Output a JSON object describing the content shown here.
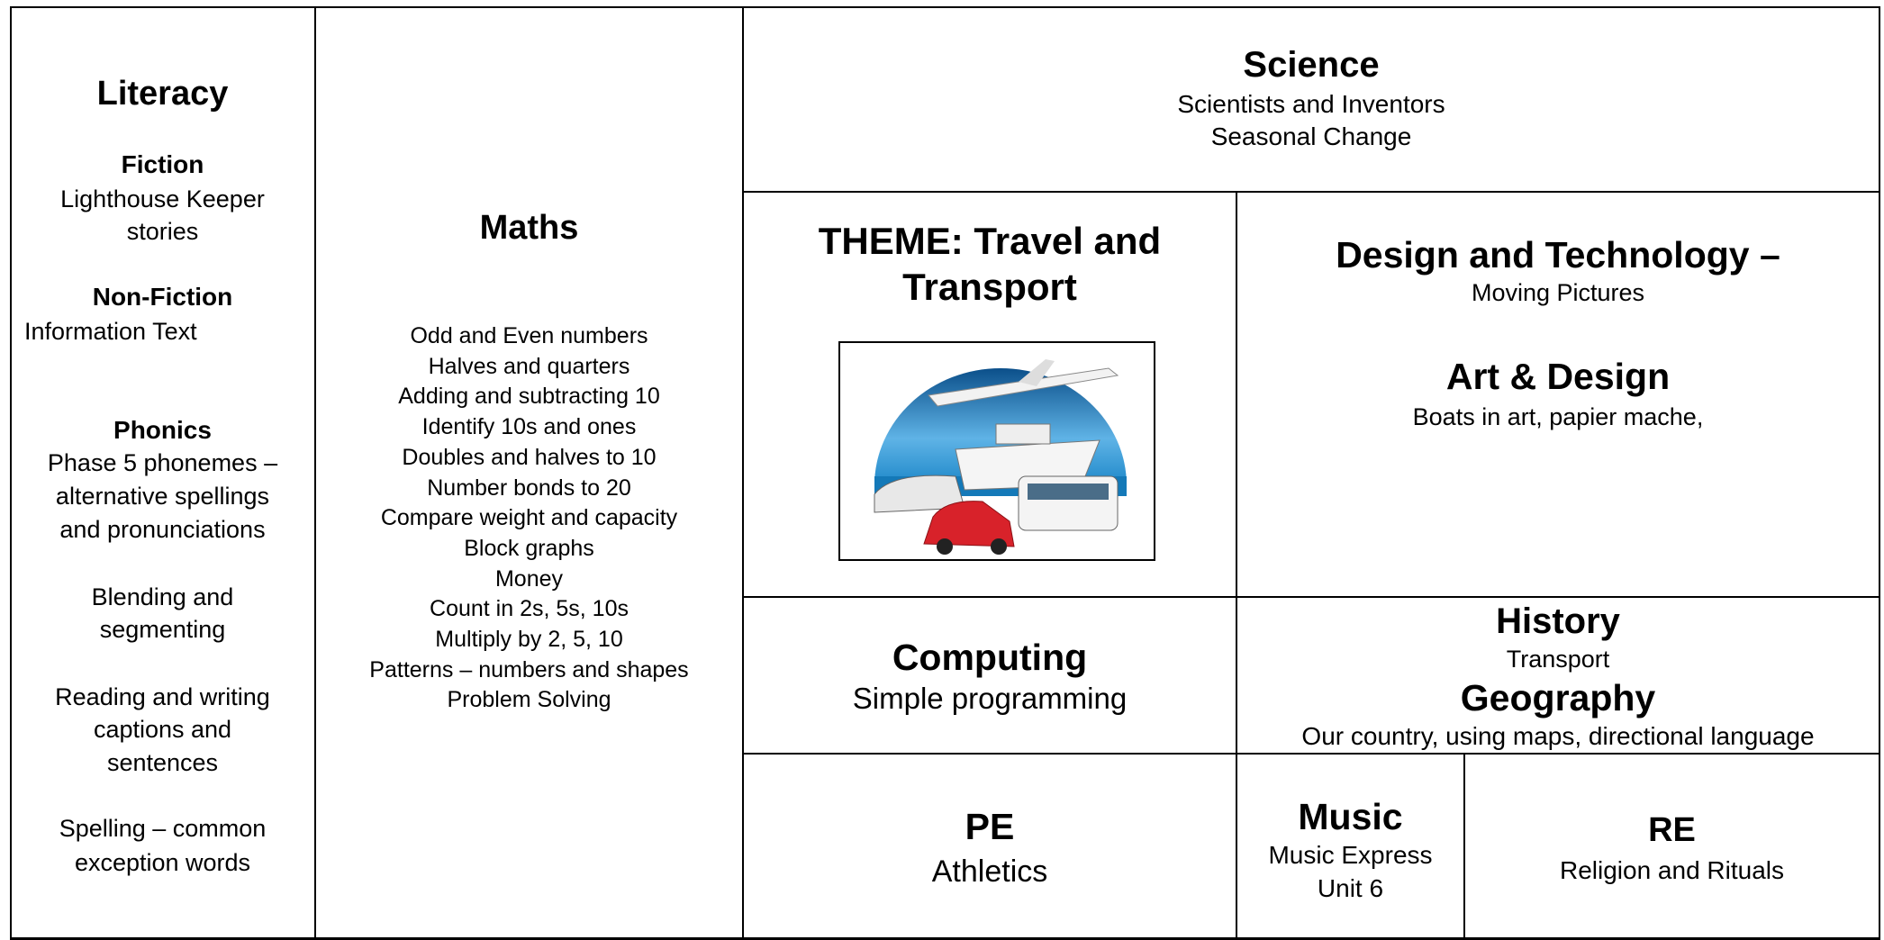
{
  "literacy": {
    "title": "Literacy",
    "items": [
      {
        "heading": "Fiction",
        "lines": [
          "Lighthouse Keeper",
          "stories"
        ]
      },
      {
        "heading": "Non-Fiction",
        "lines": [
          "Information Text"
        ]
      },
      {
        "heading": "Phonics",
        "lines": [
          "Phase 5 phonemes –",
          "alternative spellings",
          "and pronunciations"
        ]
      },
      {
        "lines": [
          "Blending and",
          "segmenting"
        ]
      },
      {
        "lines": [
          "Reading and writing",
          "captions and",
          "sentences"
        ]
      },
      {
        "lines": [
          "Spelling – common",
          "exception words"
        ]
      }
    ]
  },
  "maths": {
    "title": "Maths",
    "topics": [
      "Odd and Even numbers",
      "Halves and quarters",
      "Adding and subtracting 10",
      "Identify 10s and ones",
      "Doubles and halves to 10",
      "Number bonds to 20",
      "Compare weight and capacity",
      "Block graphs",
      "Money",
      "Count in 2s, 5s, 10s",
      "Multiply by 2, 5, 10",
      "Patterns – numbers and shapes",
      "Problem Solving"
    ]
  },
  "science": {
    "title": "Science",
    "lines": [
      "Scientists and Inventors",
      "Seasonal Change"
    ]
  },
  "theme": {
    "title_lines": [
      "THEME: Travel and",
      "Transport"
    ]
  },
  "design_technology": {
    "title": "Design and Technology –",
    "text": "Moving Pictures"
  },
  "art_design": {
    "title": "Art & Design",
    "text": "Boats in art, papier mache,"
  },
  "computing": {
    "title": "Computing",
    "text": "Simple programming"
  },
  "history": {
    "title": "History",
    "text": "Transport"
  },
  "geography": {
    "title": "Geography",
    "text": "Our country, using maps, directional language"
  },
  "pe": {
    "title": "PE",
    "text": "Athletics"
  },
  "music": {
    "title": "Music",
    "lines": [
      "Music Express",
      "Unit 6"
    ]
  },
  "re": {
    "title": "RE",
    "text": "Religion and Rituals"
  }
}
